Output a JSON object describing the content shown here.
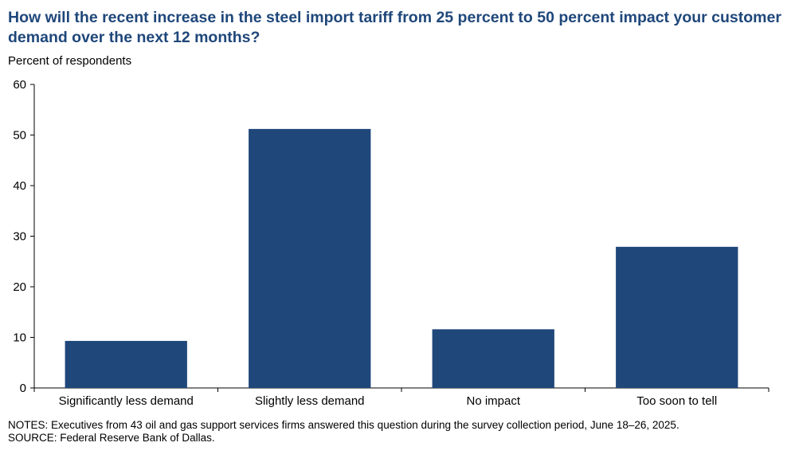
{
  "header": {
    "title": "How will the recent increase in the steel import tariff from 25 percent to 50 percent impact your customer demand over the next 12 months?"
  },
  "chart_data": {
    "type": "bar",
    "title": "How will the recent increase in the steel import tariff from 25 percent to 50 percent impact your customer demand over the next 12 months?",
    "ylabel": "Percent of respondents",
    "xlabel": "",
    "categories": [
      "Significantly less demand",
      "Slightly less demand",
      "No impact",
      "Too soon to tell"
    ],
    "values": [
      9.3,
      51.2,
      11.6,
      27.9
    ],
    "ylim": [
      0,
      60
    ],
    "yticks": [
      0,
      10,
      20,
      30,
      40,
      50,
      60
    ],
    "bar_color": "#1f477a",
    "grid": false,
    "legend": "none"
  },
  "footer": {
    "notes": "NOTES: Executives from 43 oil and gas support services firms answered this question during the survey collection period, June 18–26, 2025.",
    "source": "SOURCE: Federal Reserve Bank of Dallas."
  }
}
